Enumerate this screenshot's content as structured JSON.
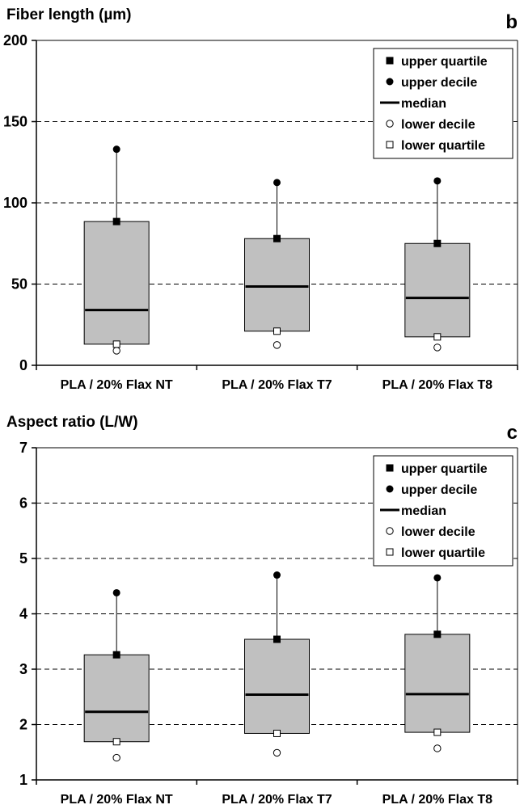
{
  "chart_data": [
    {
      "type": "box",
      "title": "Fiber length (µm)",
      "panel_letter": "b",
      "categories": [
        "PLA / 20% Flax NT",
        "PLA / 20% Flax T7",
        "PLA / 20% Flax T8"
      ],
      "ylim": [
        0,
        200
      ],
      "yticks": [
        0,
        50,
        100,
        150,
        200
      ],
      "grid": "dashed horizontal",
      "legend_position": "top-right",
      "legend": [
        "upper quartile",
        "upper decile",
        "median",
        "lower decile",
        "lower quartile"
      ],
      "series": [
        {
          "name": "upper decile",
          "values": [
            133,
            112.5,
            113.5
          ]
        },
        {
          "name": "upper quartile",
          "values": [
            88.5,
            78,
            75
          ]
        },
        {
          "name": "median",
          "values": [
            34,
            48.5,
            41.5
          ]
        },
        {
          "name": "lower quartile",
          "values": [
            13,
            21,
            17.5
          ]
        },
        {
          "name": "lower decile",
          "values": [
            9,
            12.5,
            11
          ]
        }
      ]
    },
    {
      "type": "box",
      "title": "Aspect ratio (L/W)",
      "panel_letter": "c",
      "categories": [
        "PLA / 20% Flax NT",
        "PLA / 20% Flax T7",
        "PLA / 20% Flax T8"
      ],
      "ylim": [
        1,
        7
      ],
      "yticks": [
        1,
        2,
        3,
        4,
        5,
        6,
        7
      ],
      "grid": "dashed horizontal",
      "legend_position": "top-right",
      "legend": [
        "upper quartile",
        "upper decile",
        "median",
        "lower decile",
        "lower quartile"
      ],
      "series": [
        {
          "name": "upper decile",
          "values": [
            4.38,
            4.7,
            4.65
          ]
        },
        {
          "name": "upper quartile",
          "values": [
            3.26,
            3.54,
            3.63
          ]
        },
        {
          "name": "median",
          "values": [
            2.23,
            2.54,
            2.55
          ]
        },
        {
          "name": "lower quartile",
          "values": [
            1.69,
            1.84,
            1.86
          ]
        },
        {
          "name": "lower decile",
          "values": [
            1.4,
            1.49,
            1.57
          ]
        }
      ]
    }
  ]
}
